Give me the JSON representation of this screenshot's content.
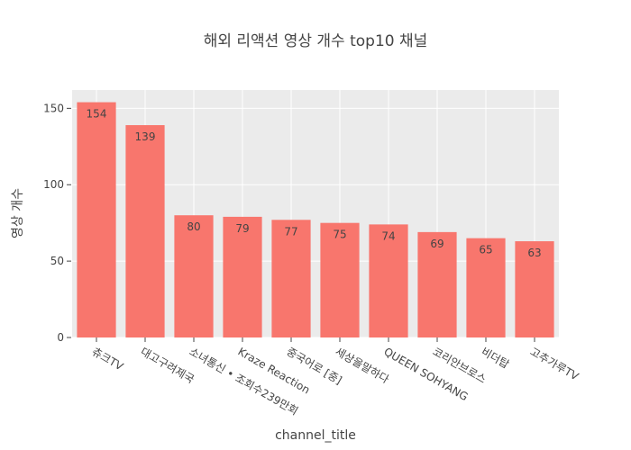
{
  "chart_data": {
    "type": "bar",
    "title": "해외 리액션 영상 개수 top10 채널",
    "xlabel": "channel_title",
    "ylabel": "영상 개수",
    "categories": [
      "츄크TV",
      "대고구려제국",
      "소녀통신 • 조회수239만회",
      "Kraze Reaction",
      "중국어로 [중]",
      "세상을말하다",
      "QUEEN SOHYANG",
      "코리안브로스",
      "비더탑",
      "고추가루TV"
    ],
    "values": [
      154,
      139,
      80,
      79,
      77,
      75,
      74,
      69,
      65,
      63
    ],
    "ylim": [
      0,
      162
    ],
    "yticks": [
      0,
      50,
      100,
      150
    ],
    "bar_color": "#f8766d",
    "plot_bg": "#ebebeb",
    "grid_color": "#ffffff",
    "grid": true
  }
}
